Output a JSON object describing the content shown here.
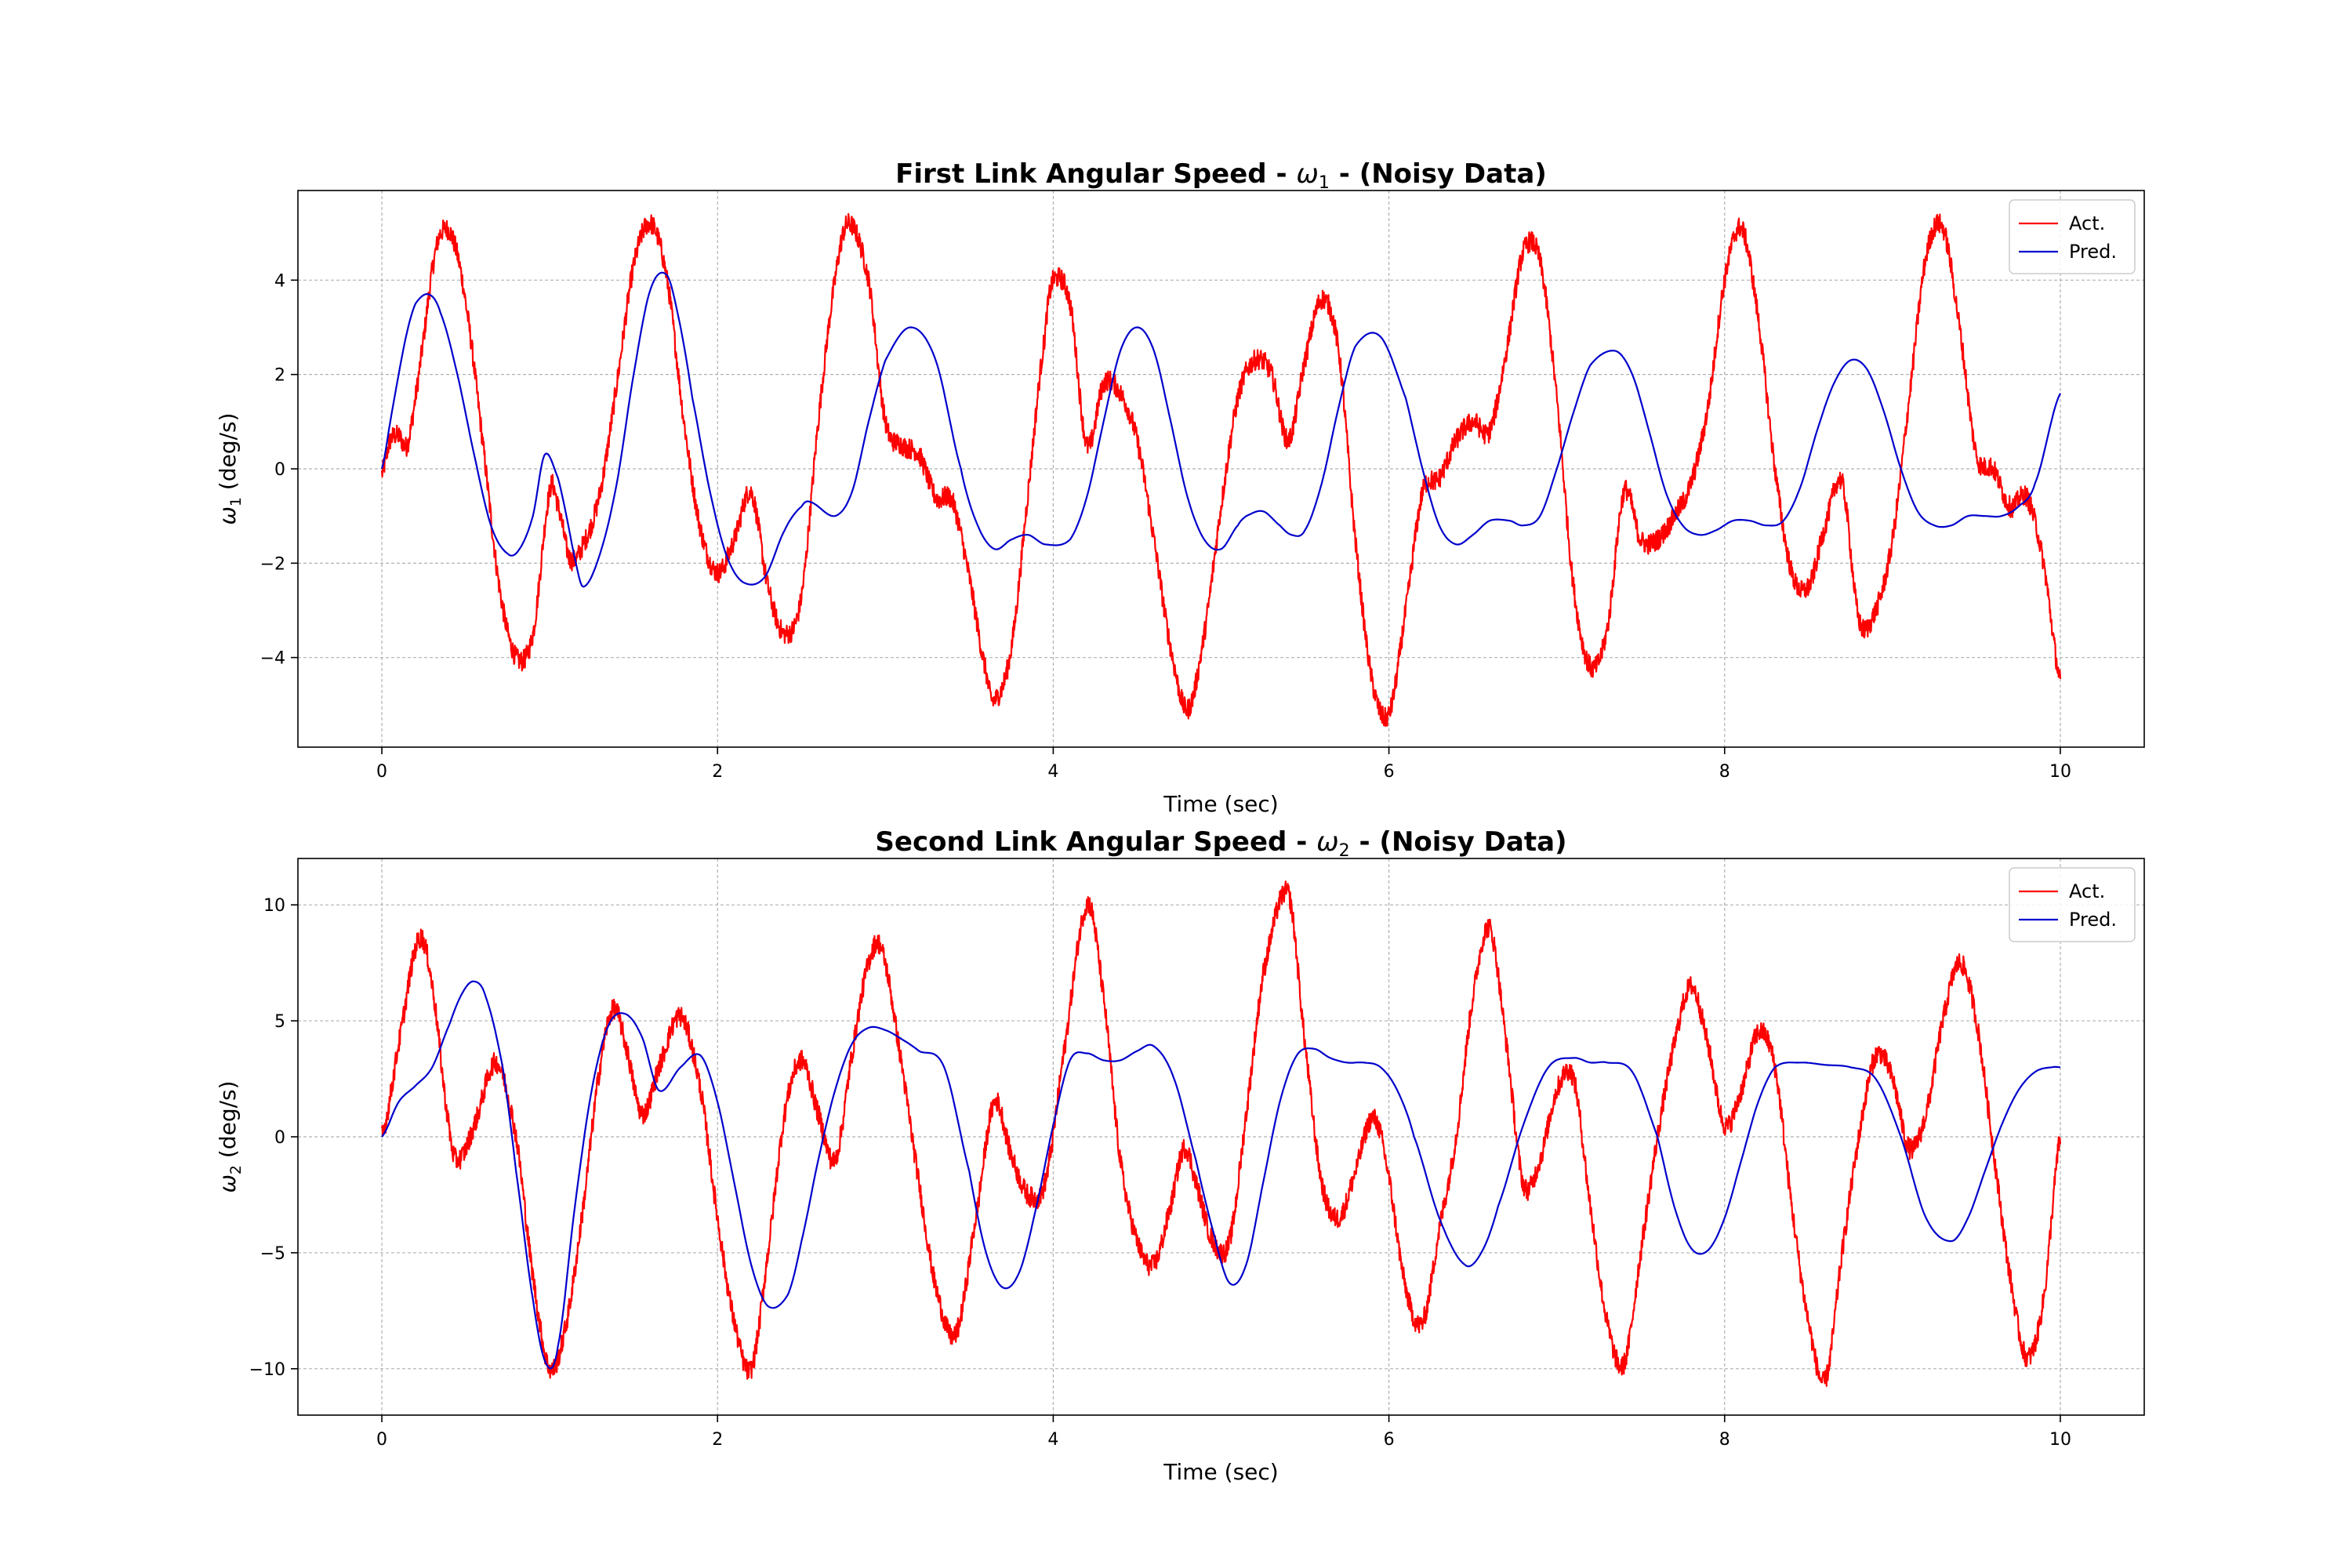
{
  "chart_data": [
    {
      "type": "line",
      "title_main": "First Link Angular Speed - ",
      "title_symbol": "ω",
      "title_subscript": "1",
      "title_suffix": " - (Noisy Data)",
      "xlabel": "Time (sec)",
      "ylabel_symbol": "ω",
      "ylabel_subscript": "1",
      "ylabel_unit": " (deg/s)",
      "xlim": [
        -0.5,
        10.5
      ],
      "ylim": [
        -5.9,
        5.9
      ],
      "xticks": [
        0,
        2,
        4,
        6,
        8,
        10
      ],
      "yticks": [
        -4,
        -2,
        0,
        2,
        4
      ],
      "grid": true,
      "legend_position": "top-right",
      "noise": 0.22,
      "series": [
        {
          "name": "Act.",
          "color": "#ff0000",
          "noisy": true,
          "x": [
            0,
            0.05,
            0.1,
            0.15,
            0.2,
            0.25,
            0.3,
            0.35,
            0.42,
            0.5,
            0.6,
            0.7,
            0.8,
            0.9,
            1.0,
            1.05,
            1.12,
            1.2,
            1.3,
            1.4,
            1.5,
            1.6,
            1.7,
            1.8,
            1.9,
            2.0,
            2.1,
            2.2,
            2.3,
            2.4,
            2.5,
            2.6,
            2.7,
            2.78,
            2.9,
            3.0,
            3.1,
            3.2,
            3.3,
            3.4,
            3.5,
            3.6,
            3.65,
            3.75,
            3.85,
            3.95,
            4.0,
            4.1,
            4.2,
            4.3,
            4.4,
            4.5,
            4.6,
            4.7,
            4.8,
            4.9,
            5.0,
            5.1,
            5.2,
            5.3,
            5.4,
            5.5,
            5.6,
            5.7,
            5.8,
            5.9,
            6.0,
            6.1,
            6.2,
            6.3,
            6.4,
            6.5,
            6.6,
            6.7,
            6.8,
            6.9,
            7.0,
            7.1,
            7.2,
            7.3,
            7.4,
            7.5,
            7.6,
            7.7,
            7.8,
            7.9,
            8.0,
            8.1,
            8.2,
            8.3,
            8.4,
            8.5,
            8.6,
            8.7,
            8.8,
            8.9,
            9.0,
            9.1,
            9.2,
            9.3,
            9.4,
            9.5,
            9.6,
            9.7,
            9.8,
            9.9,
            10.0
          ],
          "y": [
            -0.1,
            0.6,
            0.7,
            0.5,
            1.5,
            2.8,
            4.2,
            5.0,
            4.9,
            3.5,
            0.6,
            -2.5,
            -4.0,
            -3.5,
            -0.5,
            -0.8,
            -1.9,
            -1.6,
            -0.5,
            1.8,
            4.3,
            5.2,
            4.0,
            1.0,
            -1.3,
            -2.2,
            -1.5,
            -0.5,
            -2.5,
            -3.5,
            -2.7,
            1.0,
            4.0,
            5.2,
            4.0,
            1.0,
            0.5,
            0.3,
            -0.6,
            -0.7,
            -2.3,
            -4.3,
            -4.9,
            -3.8,
            -0.5,
            2.8,
            4.0,
            3.5,
            0.5,
            1.8,
            1.6,
            0.6,
            -1.5,
            -3.8,
            -5.1,
            -3.5,
            -0.8,
            1.5,
            2.3,
            2.0,
            0.6,
            2.3,
            3.6,
            2.5,
            -1.5,
            -4.5,
            -5.2,
            -3.0,
            -0.5,
            -0.2,
            0.6,
            1.0,
            0.8,
            2.5,
            4.6,
            4.4,
            1.5,
            -2.5,
            -4.2,
            -3.4,
            -0.5,
            -1.5,
            -1.5,
            -1.0,
            -0.3,
            1.3,
            4.0,
            5.1,
            3.2,
            0.0,
            -2.2,
            -2.5,
            -1.2,
            -0.3,
            -3.2,
            -3.0,
            -1.5,
            1.5,
            4.5,
            5.1,
            3.0,
            0.3,
            0.0,
            -0.8,
            -0.6,
            -2.0,
            -4.5
          ]
        },
        {
          "name": "Pred.",
          "color": "#0000cc",
          "noisy": false,
          "x": [
            0,
            0.05,
            0.1,
            0.15,
            0.2,
            0.28,
            0.35,
            0.45,
            0.55,
            0.65,
            0.75,
            0.82,
            0.9,
            0.97,
            1.05,
            1.1,
            1.15,
            1.2,
            1.3,
            1.4,
            1.5,
            1.6,
            1.7,
            1.78,
            1.85,
            1.95,
            2.05,
            2.15,
            2.28,
            2.4,
            2.5,
            2.55,
            2.7,
            2.8,
            2.9,
            3.0,
            3.15,
            3.3,
            3.45,
            3.55,
            3.65,
            3.75,
            3.85,
            3.95,
            4.1,
            4.2,
            4.3,
            4.4,
            4.5,
            4.6,
            4.7,
            4.8,
            4.9,
            5.0,
            5.1,
            5.15,
            5.25,
            5.35,
            5.42,
            5.5,
            5.6,
            5.7,
            5.8,
            5.95,
            6.1,
            6.2,
            6.3,
            6.4,
            6.5,
            6.6,
            6.72,
            6.8,
            6.9,
            7.0,
            7.1,
            7.2,
            7.35,
            7.45,
            7.55,
            7.65,
            7.75,
            7.85,
            7.95,
            8.05,
            8.15,
            8.25,
            8.35,
            8.45,
            8.55,
            8.65,
            8.75,
            8.85,
            8.95,
            9.05,
            9.15,
            9.25,
            9.35,
            9.45,
            9.55,
            9.65,
            9.75,
            9.85,
            10.0
          ],
          "y": [
            0.0,
            1.0,
            2.0,
            2.9,
            3.5,
            3.7,
            3.3,
            2.0,
            0.3,
            -1.2,
            -1.8,
            -1.7,
            -1.0,
            0.3,
            -0.2,
            -1.0,
            -1.9,
            -2.5,
            -1.8,
            -0.3,
            2.0,
            3.8,
            4.1,
            3.0,
            1.5,
            -0.4,
            -1.8,
            -2.4,
            -2.3,
            -1.3,
            -0.8,
            -0.7,
            -1.0,
            -0.5,
            1.0,
            2.3,
            3.0,
            2.3,
            0.0,
            -1.2,
            -1.7,
            -1.5,
            -1.4,
            -1.6,
            -1.5,
            -0.6,
            1.0,
            2.5,
            3.0,
            2.5,
            1.0,
            -0.6,
            -1.5,
            -1.7,
            -1.2,
            -1.0,
            -0.9,
            -1.2,
            -1.4,
            -1.3,
            -0.3,
            1.3,
            2.6,
            2.8,
            1.5,
            0.0,
            -1.2,
            -1.6,
            -1.4,
            -1.1,
            -1.1,
            -1.2,
            -1.0,
            0.0,
            1.2,
            2.2,
            2.5,
            2.0,
            0.8,
            -0.5,
            -1.2,
            -1.4,
            -1.3,
            -1.1,
            -1.1,
            -1.2,
            -1.1,
            -0.4,
            0.8,
            1.8,
            2.3,
            2.1,
            1.2,
            0.0,
            -0.9,
            -1.2,
            -1.2,
            -1.0,
            -1.0,
            -1.0,
            -0.8,
            -0.3,
            1.6
          ]
        }
      ]
    },
    {
      "type": "line",
      "title_main": "Second Link Angular Speed - ",
      "title_symbol": "ω",
      "title_subscript": "2",
      "title_suffix": " - (Noisy Data)",
      "xlabel": "Time (sec)",
      "ylabel_symbol": "ω",
      "ylabel_subscript": "2",
      "ylabel_unit": " (deg/s)",
      "xlim": [
        -0.5,
        10.5
      ],
      "ylim": [
        -12,
        12
      ],
      "xticks": [
        0,
        2,
        4,
        6,
        8,
        10
      ],
      "yticks": [
        -10,
        -5,
        0,
        5,
        10
      ],
      "grid": true,
      "legend_position": "top-right",
      "noise": 0.45,
      "series": [
        {
          "name": "Act.",
          "color": "#ff0000",
          "noisy": true,
          "x": [
            0,
            0.1,
            0.22,
            0.3,
            0.4,
            0.45,
            0.55,
            0.68,
            0.8,
            0.9,
            1.0,
            1.1,
            1.2,
            1.3,
            1.38,
            1.45,
            1.55,
            1.65,
            1.78,
            1.9,
            2.0,
            2.1,
            2.2,
            2.3,
            2.4,
            2.5,
            2.6,
            2.7,
            2.8,
            2.9,
            2.98,
            3.1,
            3.2,
            3.3,
            3.42,
            3.55,
            3.65,
            3.75,
            3.85,
            3.95,
            4.05,
            4.2,
            4.3,
            4.4,
            4.5,
            4.6,
            4.7,
            4.78,
            4.85,
            4.95,
            5.05,
            5.15,
            5.25,
            5.4,
            5.5,
            5.6,
            5.7,
            5.8,
            5.9,
            5.98,
            6.1,
            6.2,
            6.3,
            6.4,
            6.5,
            6.6,
            6.7,
            6.8,
            6.9,
            7.0,
            7.1,
            7.2,
            7.3,
            7.4,
            7.5,
            7.6,
            7.7,
            7.8,
            7.9,
            8.0,
            8.1,
            8.2,
            8.3,
            8.4,
            8.5,
            8.6,
            8.7,
            8.8,
            8.9,
            9.0,
            9.1,
            9.2,
            9.3,
            9.4,
            9.5,
            9.6,
            9.7,
            9.8,
            9.9,
            10.0
          ],
          "y": [
            0.0,
            4.0,
            8.5,
            6.5,
            0.5,
            -1.0,
            0.5,
            3.2,
            0.0,
            -6.0,
            -10.0,
            -8.0,
            -3.0,
            3.0,
            5.5,
            4.0,
            1.0,
            3.0,
            5.2,
            2.0,
            -3.5,
            -8.0,
            -10.0,
            -5.0,
            1.0,
            3.3,
            1.0,
            -1.0,
            3.5,
            7.5,
            8.0,
            3.0,
            -2.0,
            -6.5,
            -8.5,
            -3.0,
            1.5,
            -0.8,
            -2.5,
            -2.0,
            3.0,
            10.0,
            6.0,
            -1.0,
            -4.5,
            -5.5,
            -3.0,
            -0.5,
            -2.0,
            -4.5,
            -4.5,
            1.0,
            7.0,
            10.5,
            4.0,
            -2.0,
            -3.5,
            -1.5,
            0.8,
            -1.0,
            -6.5,
            -8.0,
            -4.0,
            0.0,
            6.0,
            9.0,
            4.0,
            -2.0,
            -1.0,
            2.0,
            2.5,
            -3.0,
            -8.0,
            -9.8,
            -5.0,
            0.0,
            4.0,
            6.5,
            4.0,
            0.5,
            2.0,
            4.5,
            3.0,
            -3.0,
            -8.0,
            -10.5,
            -5.0,
            0.0,
            3.5,
            2.5,
            -0.5,
            1.0,
            5.0,
            7.5,
            5.0,
            -0.5,
            -6.0,
            -9.5,
            -7.0,
            0.0
          ]
        },
        {
          "name": "Pred.",
          "color": "#0000cc",
          "noisy": false,
          "x": [
            0,
            0.1,
            0.2,
            0.3,
            0.4,
            0.48,
            0.55,
            0.62,
            0.72,
            0.8,
            0.9,
            0.98,
            1.05,
            1.15,
            1.25,
            1.35,
            1.45,
            1.55,
            1.65,
            1.78,
            1.9,
            2.0,
            2.1,
            2.2,
            2.3,
            2.42,
            2.5,
            2.6,
            2.7,
            2.8,
            2.9,
            3.0,
            3.1,
            3.2,
            3.35,
            3.5,
            3.6,
            3.7,
            3.8,
            3.9,
            4.0,
            4.1,
            4.2,
            4.3,
            4.4,
            4.5,
            4.6,
            4.72,
            4.85,
            4.95,
            5.05,
            5.15,
            5.25,
            5.35,
            5.45,
            5.55,
            5.65,
            5.75,
            5.85,
            5.95,
            6.05,
            6.15,
            6.3,
            6.45,
            6.55,
            6.65,
            6.8,
            6.95,
            7.1,
            7.2,
            7.3,
            7.45,
            7.6,
            7.7,
            7.8,
            7.9,
            8.0,
            8.1,
            8.2,
            8.3,
            8.45,
            8.6,
            8.75,
            8.9,
            9.05,
            9.2,
            9.35,
            9.45,
            9.55,
            9.65,
            9.75,
            9.85,
            9.95,
            10.0
          ],
          "y": [
            0.0,
            1.5,
            2.2,
            3.0,
            4.8,
            6.2,
            6.7,
            6.0,
            3.0,
            -1.5,
            -7.0,
            -9.8,
            -9.0,
            -3.0,
            2.0,
            4.8,
            5.3,
            4.3,
            2.0,
            3.0,
            3.5,
            1.5,
            -2.0,
            -5.5,
            -7.3,
            -6.8,
            -4.5,
            -1.0,
            2.0,
            4.0,
            4.7,
            4.6,
            4.2,
            3.7,
            3.0,
            -1.5,
            -5.0,
            -6.5,
            -5.8,
            -3.0,
            0.5,
            3.3,
            3.6,
            3.3,
            3.3,
            3.7,
            3.9,
            2.5,
            -1.0,
            -4.0,
            -6.3,
            -5.5,
            -2.0,
            1.5,
            3.5,
            3.8,
            3.4,
            3.2,
            3.2,
            3.0,
            2.0,
            0.0,
            -3.5,
            -5.5,
            -5.0,
            -3.0,
            0.5,
            3.0,
            3.4,
            3.2,
            3.2,
            2.8,
            0.0,
            -3.0,
            -4.8,
            -4.9,
            -3.5,
            -1.0,
            1.5,
            3.0,
            3.2,
            3.1,
            3.0,
            2.5,
            0.0,
            -3.5,
            -4.5,
            -3.5,
            -1.5,
            0.5,
            2.0,
            2.8,
            3.0,
            3.0
          ]
        }
      ]
    }
  ]
}
